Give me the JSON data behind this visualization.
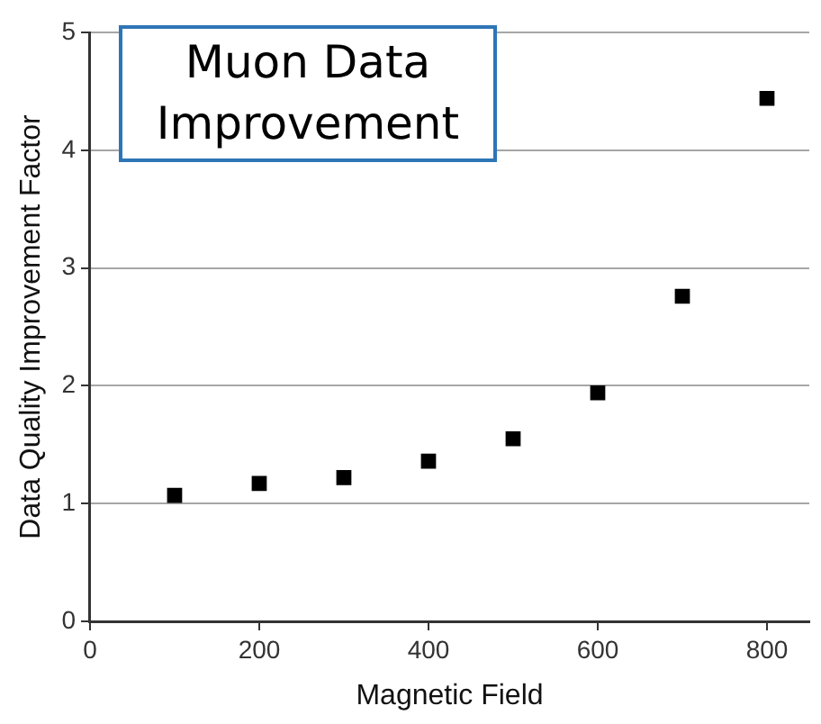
{
  "chart_data": {
    "type": "scatter",
    "title": "Muon Data Improvement",
    "xlabel": "Magnetic Field",
    "ylabel": "Data Quality Improvement Factor",
    "x": [
      100,
      200,
      300,
      400,
      500,
      600,
      700,
      800
    ],
    "series": [
      {
        "color": "#000000",
        "values": [
          1.07,
          1.17,
          1.22,
          1.36,
          1.55,
          1.94,
          2.76,
          4.44
        ]
      }
    ],
    "xlim": [
      0,
      850
    ],
    "xticks": [
      0,
      200,
      400,
      600,
      800
    ],
    "ylim": [
      0,
      5
    ],
    "yticks": [
      0,
      1,
      2,
      3,
      4,
      5
    ],
    "grid": "y",
    "legend": false,
    "marker": "square"
  }
}
